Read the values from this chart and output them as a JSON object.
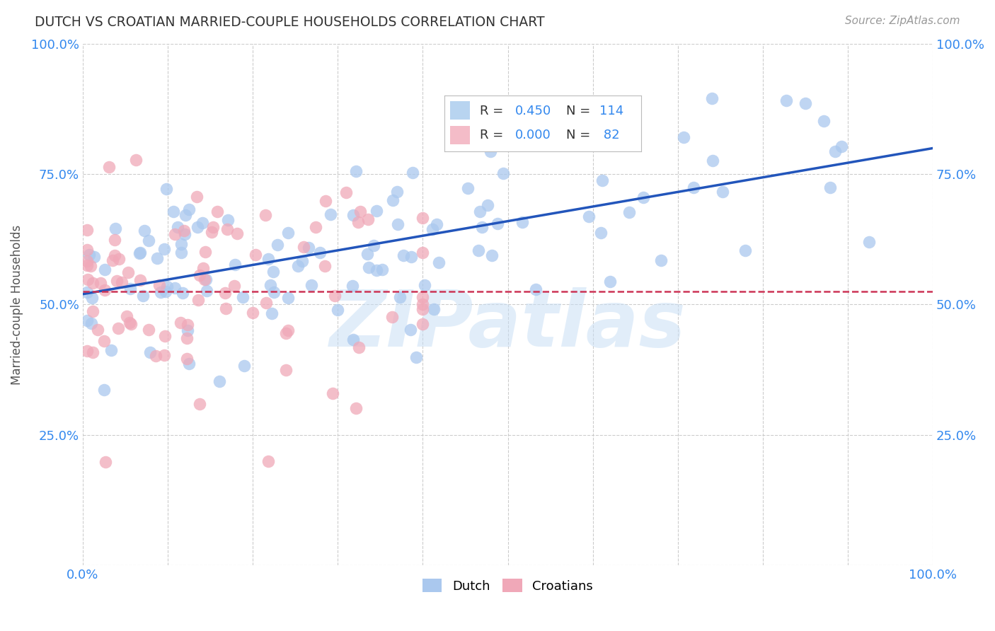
{
  "title": "DUTCH VS CROATIAN MARRIED-COUPLE HOUSEHOLDS CORRELATION CHART",
  "source": "Source: ZipAtlas.com",
  "ylabel": "Married-couple Households",
  "watermark": "ZIPatlas",
  "dutch_R": 0.45,
  "dutch_N": 114,
  "croatian_R": 0.0,
  "croatian_N": 82,
  "dutch_color": "#aac8ee",
  "croatian_color": "#f0a8b8",
  "dutch_line_color": "#2255bb",
  "croatian_line_color": "#cc3355",
  "legend_box_color": "#b8d4f0",
  "legend_box_color2": "#f4bcc8",
  "tick_label_color": "#3388ee",
  "title_color": "#333333",
  "background_color": "#ffffff",
  "ytick_vals": [
    0.0,
    0.25,
    0.5,
    0.75,
    1.0
  ],
  "xtick_vals": [
    0.0,
    0.1,
    0.2,
    0.3,
    0.4,
    0.5,
    0.6,
    0.7,
    0.8,
    0.9,
    1.0
  ],
  "dutch_line_x0": 0.0,
  "dutch_line_y0": 0.52,
  "dutch_line_x1": 1.0,
  "dutch_line_y1": 0.8,
  "croatian_line_y": 0.525
}
